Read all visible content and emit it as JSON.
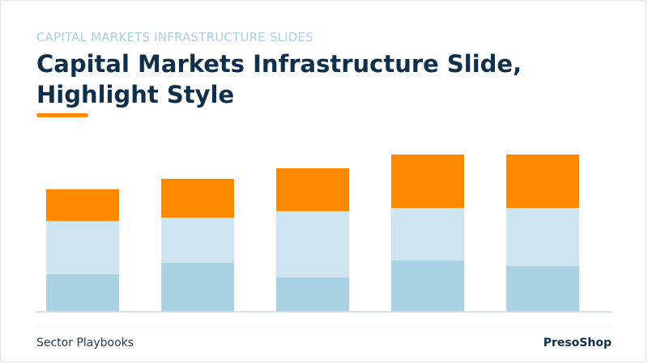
{
  "header": {
    "kicker": "CAPITAL MARKETS INFRASTRUCTURE SLIDES",
    "title": "Capital Markets Infrastructure Slide, Highlight Style"
  },
  "footer": {
    "left": "Sector Playbooks",
    "right": "PresoShop"
  },
  "colors": {
    "accent": "#ff8a00",
    "light_blue": "#cfe6f1",
    "mid_blue": "#a9d3e3",
    "title": "#0f2f4a"
  },
  "chart_data": {
    "type": "bar",
    "stacked": true,
    "categories": [
      "",
      "",
      "",
      "",
      ""
    ],
    "series": [
      {
        "values": [
          46,
          60,
          42,
          63,
          56
        ],
        "color": "#a9d3e3"
      },
      {
        "values": [
          66,
          56,
          82,
          65,
          72
        ],
        "color": "#cfe6f1"
      },
      {
        "values": [
          39,
          48,
          53,
          66,
          66
        ],
        "color": "#ff8a00"
      }
    ],
    "ylim": [
      0,
      195
    ],
    "grid": false,
    "legend": "none"
  }
}
